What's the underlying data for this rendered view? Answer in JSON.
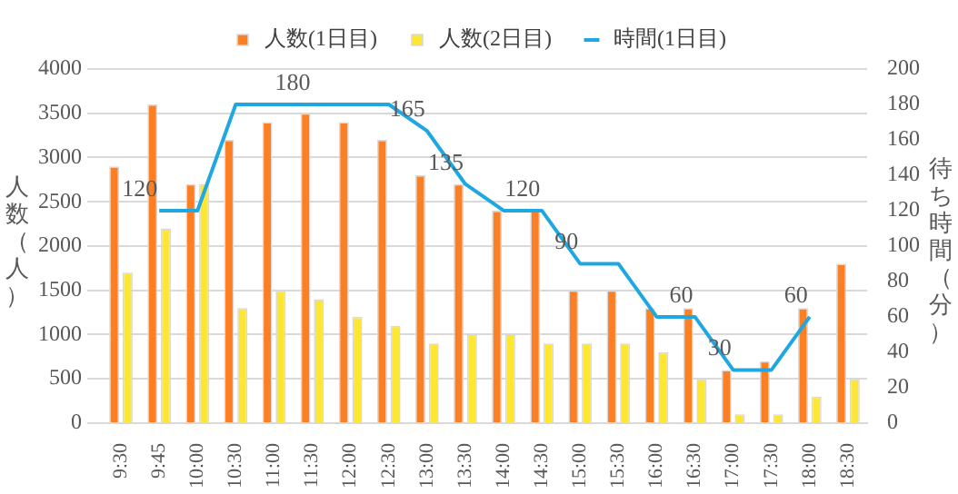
{
  "chart_data": {
    "type": "bar",
    "categories": [
      "9:30",
      "9:45",
      "10:00",
      "10:30",
      "11:00",
      "11:30",
      "12:00",
      "12:30",
      "13:00",
      "13:30",
      "14:00",
      "14:30",
      "15:00",
      "15:30",
      "16:00",
      "16:30",
      "17:00",
      "17:30",
      "18:00",
      "18:30"
    ],
    "series": [
      {
        "name": "人数(1日目)",
        "color": "#fd7f23",
        "values": [
          2900,
          3600,
          2700,
          3200,
          3400,
          3500,
          3400,
          3200,
          2800,
          2700,
          2400,
          2400,
          1500,
          1500,
          1300,
          1300,
          600,
          700,
          1300,
          1800
        ]
      },
      {
        "name": "人数(2日目)",
        "color": "#fde733",
        "values": [
          1700,
          2200,
          2700,
          1300,
          1500,
          1400,
          1200,
          1100,
          900,
          1000,
          1000,
          900,
          900,
          900,
          800,
          500,
          100,
          100,
          300,
          500
        ]
      },
      {
        "name": "時間(1日目)",
        "type": "line",
        "axis": "y2",
        "color": "#1ea7e1",
        "values": [
          null,
          120,
          120,
          180,
          180,
          180,
          180,
          180,
          165,
          135,
          120,
          120,
          90,
          90,
          60,
          60,
          30,
          30,
          60,
          null
        ],
        "value_labels": [
          null,
          "120",
          null,
          null,
          null,
          "180",
          null,
          null,
          "165",
          "135",
          null,
          "120",
          "90",
          null,
          null,
          "60",
          "30",
          null,
          "60",
          null
        ]
      }
    ],
    "ylabel": "人数（人）",
    "y2label": "待ち時間（分）",
    "ylim": [
      0,
      4000
    ],
    "yticks": [
      0,
      500,
      1000,
      1500,
      2000,
      2500,
      3000,
      3500,
      4000
    ],
    "y2lim": [
      0,
      200
    ],
    "y2ticks": [
      0,
      20,
      40,
      60,
      80,
      100,
      120,
      140,
      160,
      180,
      200
    ],
    "grid": "y",
    "legend": "top",
    "marker": "none"
  }
}
